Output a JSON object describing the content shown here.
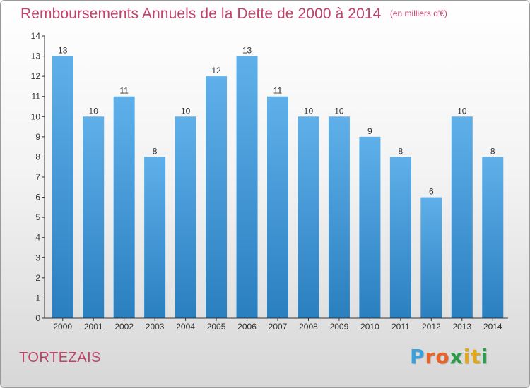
{
  "title": "Remboursements Annuels de la Dette de 2000 à 2014",
  "unit": "(en milliers d'€)",
  "commune": "TORTEZAIS",
  "brand": {
    "text": "Proxiti",
    "colors": [
      "#3aa0d8",
      "#e8632a",
      "#e8632a",
      "#2d9b4a",
      "#e0a81c",
      "#e0a81c",
      "#2d9b4a"
    ]
  },
  "colors": {
    "title": "#c0436a",
    "bar_top": "#5fb0ea",
    "bar_bottom": "#2a7fbf",
    "axis": "#333333"
  },
  "chart_data": {
    "type": "bar",
    "categories": [
      "2000",
      "2001",
      "2002",
      "2003",
      "2004",
      "2005",
      "2006",
      "2007",
      "2008",
      "2009",
      "2010",
      "2011",
      "2012",
      "2013",
      "2014"
    ],
    "values": [
      13,
      10,
      11,
      8,
      10,
      12,
      13,
      11,
      10,
      10,
      9,
      8,
      6,
      10,
      8
    ],
    "yticks": [
      0,
      1,
      2,
      3,
      4,
      5,
      6,
      7,
      8,
      9,
      10,
      11,
      12,
      13,
      14
    ],
    "ylim": [
      0,
      14
    ],
    "grid": false,
    "legend": "none"
  }
}
